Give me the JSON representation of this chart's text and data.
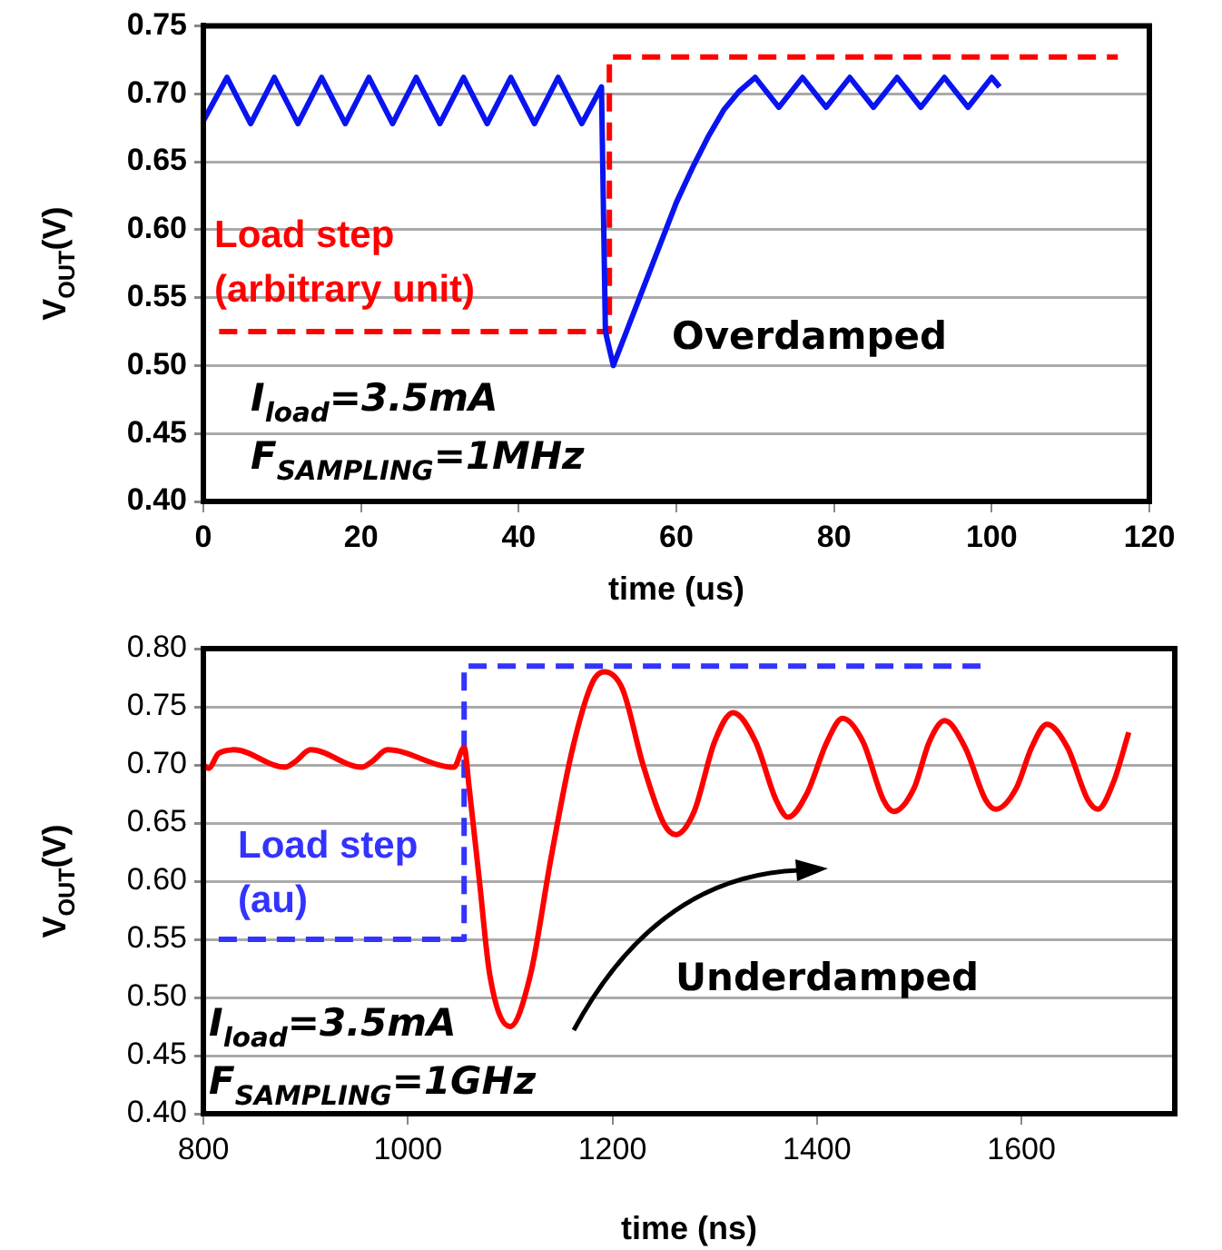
{
  "chart_data": [
    {
      "type": "line",
      "xlabel": "time (us)",
      "ylabel": "V$_{OUT}$(V)",
      "xlim": [
        0,
        120
      ],
      "ylim": [
        0.4,
        0.75
      ],
      "xticks": [
        0,
        20,
        40,
        60,
        80,
        100,
        120
      ],
      "yticks": [
        {
          "value": 0.4,
          "label": "0.40"
        },
        0.45,
        {
          "value": 0.5,
          "label": "0.50"
        },
        0.55,
        {
          "value": 0.6,
          "label": "0.60"
        },
        0.65,
        {
          "value": 0.7,
          "label": "0.70"
        },
        0.75
      ],
      "grid": "y",
      "marker": "none",
      "series": [
        {
          "type": "line",
          "color": "#0a14f0",
          "x": [
            0,
            3,
            6,
            9,
            12,
            15,
            18,
            21,
            24,
            27,
            30,
            33,
            36,
            39,
            42,
            45,
            48,
            50.5,
            51,
            52,
            53,
            54,
            56,
            58,
            60,
            62,
            64,
            66,
            68,
            70,
            73,
            76,
            79,
            82,
            85,
            88,
            91,
            94,
            97,
            100,
            101
          ],
          "values": [
            0.68,
            0.712,
            0.678,
            0.712,
            0.678,
            0.712,
            0.678,
            0.712,
            0.678,
            0.712,
            0.678,
            0.712,
            0.678,
            0.712,
            0.678,
            0.712,
            0.678,
            0.705,
            0.525,
            0.5,
            0.515,
            0.53,
            0.56,
            0.59,
            0.62,
            0.645,
            0.668,
            0.688,
            0.702,
            0.712,
            0.69,
            0.712,
            0.69,
            0.712,
            0.69,
            0.712,
            0.69,
            0.712,
            0.69,
            0.712,
            0.705
          ]
        },
        {
          "type": "step",
          "name": "Load step (arbitrary unit)",
          "color": "#ff0000",
          "line_style": "dashed",
          "x": [
            2,
            51.5,
            116
          ],
          "values": [
            0.525,
            0.727,
            0.727
          ]
        }
      ],
      "annotations": [
        "I$_{load}$=3.5mA",
        "F$_{SAMPLING}$=1MHz",
        "Overdamped"
      ]
    },
    {
      "type": "line",
      "xlabel": "time (ns)",
      "ylabel": "V$_{OUT}$(V)",
      "xlim": [
        800,
        1750
      ],
      "ylim": [
        0.4,
        0.8
      ],
      "xticks": [
        800,
        1000,
        1200,
        1400,
        1600
      ],
      "yticks": [
        {
          "value": 0.4,
          "label": "0.40"
        },
        0.45,
        {
          "value": 0.5,
          "label": "0.50"
        },
        0.55,
        {
          "value": 0.6,
          "label": "0.60"
        },
        0.65,
        {
          "value": 0.7,
          "label": "0.70"
        },
        0.75,
        {
          "value": 0.8,
          "label": "0.80"
        }
      ],
      "grid": "y",
      "marker": "none",
      "series": [
        {
          "type": "line",
          "color": "#ff0000",
          "x": [
            800,
            805,
            815,
            830,
            880,
            890,
            905,
            955,
            965,
            980,
            1045,
            1055,
            1060,
            1070,
            1080,
            1100,
            1120,
            1140,
            1160,
            1180,
            1192,
            1210,
            1230,
            1250,
            1262,
            1280,
            1300,
            1318,
            1340,
            1360,
            1372,
            1390,
            1410,
            1425,
            1445,
            1465,
            1475,
            1495,
            1510,
            1525,
            1545,
            1565,
            1575,
            1595,
            1610,
            1625,
            1645,
            1665,
            1675,
            1690,
            1705
          ],
          "values": [
            0.7,
            0.697,
            0.71,
            0.713,
            0.698,
            0.703,
            0.713,
            0.698,
            0.703,
            0.713,
            0.698,
            0.715,
            0.68,
            0.6,
            0.52,
            0.475,
            0.52,
            0.62,
            0.71,
            0.77,
            0.78,
            0.765,
            0.7,
            0.65,
            0.64,
            0.66,
            0.72,
            0.745,
            0.72,
            0.67,
            0.655,
            0.675,
            0.72,
            0.74,
            0.72,
            0.67,
            0.66,
            0.68,
            0.72,
            0.738,
            0.715,
            0.67,
            0.662,
            0.68,
            0.715,
            0.735,
            0.715,
            0.67,
            0.662,
            0.685,
            0.728
          ]
        },
        {
          "type": "step",
          "name": "Load step (au)",
          "color": "#3333ff",
          "line_style": "dashed",
          "x": [
            815,
            1055,
            1560
          ],
          "values": [
            0.55,
            0.785,
            0.785
          ]
        }
      ],
      "annotations": [
        "I$_{load}$=3.5mA",
        "F$_{SAMPLING}$=1GHz",
        "Underdamped"
      ]
    }
  ]
}
